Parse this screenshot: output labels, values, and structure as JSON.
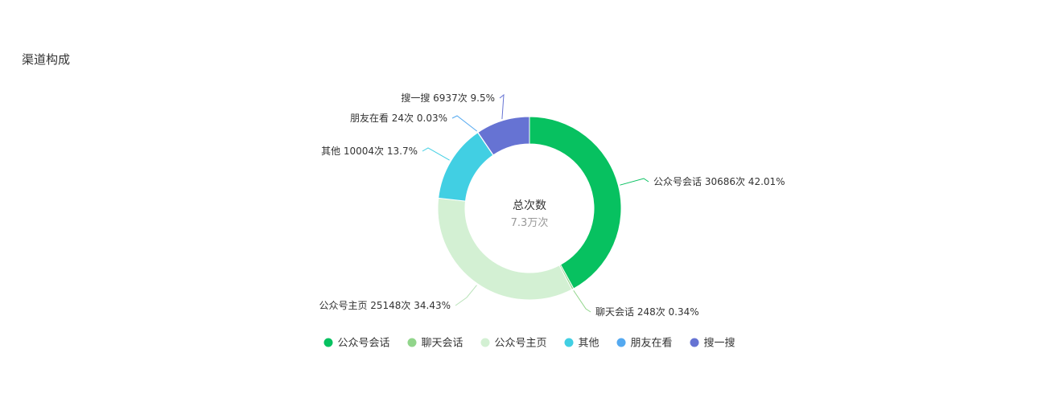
{
  "section": {
    "title": "渠道构成"
  },
  "chart_data": {
    "type": "pie",
    "donut": true,
    "title": "",
    "center": {
      "title": "总次数",
      "value": "7.3万次"
    },
    "unit": "次",
    "slices": [
      {
        "name": "公众号会话",
        "value": 30686,
        "percent": "42.01%",
        "color": "#07c160",
        "label": "公众号会话 30686次 42.01%"
      },
      {
        "name": "聊天会话",
        "value": 248,
        "percent": "0.34%",
        "color": "#91d58b",
        "label": "聊天会话 248次 0.34%"
      },
      {
        "name": "公众号主页",
        "value": 25148,
        "percent": "34.43%",
        "color": "#d3f0d3",
        "label": "公众号主页 25148次 34.43%"
      },
      {
        "name": "其他",
        "value": 10004,
        "percent": "13.7%",
        "color": "#41cfe3",
        "label": "其他 10004次 13.7%"
      },
      {
        "name": "朋友在看",
        "value": 24,
        "percent": "0.03%",
        "color": "#54a9f0",
        "label": "朋友在看 24次 0.03%"
      },
      {
        "name": "搜一搜",
        "value": 6937,
        "percent": "9.5%",
        "color": "#6673d3",
        "label": "搜一搜 6937次 9.5%"
      }
    ],
    "legend": {
      "position": "bottom",
      "items": [
        "公众号会话",
        "聊天会话",
        "公众号主页",
        "其他",
        "朋友在看",
        "搜一搜"
      ]
    }
  }
}
